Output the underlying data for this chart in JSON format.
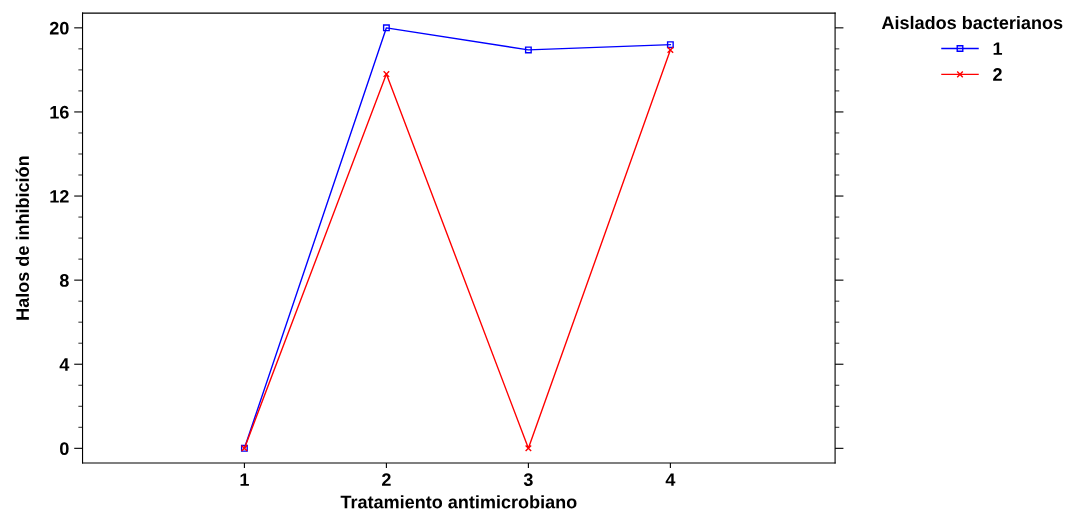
{
  "chart_data": {
    "type": "line",
    "xlabel": "Tratamiento antimicrobiano",
    "ylabel": "Halos de inhibición",
    "x": [
      1,
      2,
      3,
      4
    ],
    "xlim": [
      -0.14,
      5.16
    ],
    "xticks": [
      1,
      2,
      3,
      4
    ],
    "ylim": [
      -0.7,
      20.7
    ],
    "yticks": [
      0,
      4,
      8,
      12,
      16,
      20
    ],
    "legend_title": "Aislados bacterianos",
    "legend": "top right",
    "grid": false,
    "line_style": "solid",
    "series": [
      {
        "name": "1",
        "color": "#0000ff",
        "marker": "square",
        "values": [
          0,
          20,
          18.95,
          19.2
        ]
      },
      {
        "name": "2",
        "color": "#ff0000",
        "marker": "cross",
        "values": [
          0,
          17.8,
          0,
          18.95
        ]
      }
    ]
  }
}
